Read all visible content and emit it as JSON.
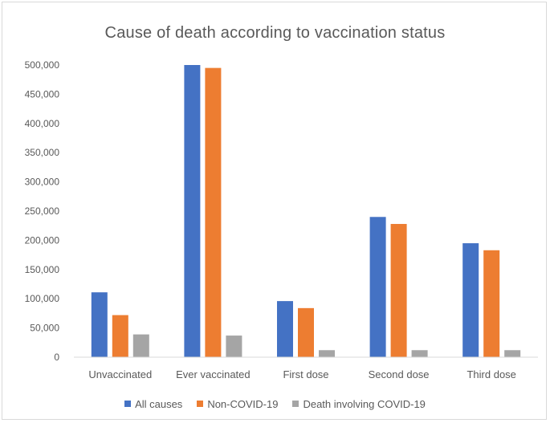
{
  "chart_data": {
    "type": "bar",
    "title": "Cause of death according to vaccination status",
    "categories": [
      "Unvaccinated",
      "Ever vaccinated",
      "First dose",
      "Second dose",
      "Third dose"
    ],
    "series": [
      {
        "name": "All causes",
        "color": "#4472c4",
        "values": [
          111000,
          500000,
          96000,
          240000,
          195000
        ]
      },
      {
        "name": "Non-COVID-19",
        "color": "#ed7d31",
        "values": [
          72000,
          495000,
          84000,
          228000,
          183000
        ]
      },
      {
        "name": "Death involving COVID-19",
        "color": "#a5a5a5",
        "values": [
          39000,
          37000,
          12000,
          12000,
          12000
        ]
      }
    ],
    "yticks": [
      "0",
      "50,000",
      "100,000",
      "150,000",
      "200,000",
      "250,000",
      "300,000",
      "350,000",
      "400,000",
      "450,000",
      "500,000"
    ],
    "ylim": [
      0,
      500000
    ],
    "grid": false,
    "legend_position": "bottom"
  }
}
